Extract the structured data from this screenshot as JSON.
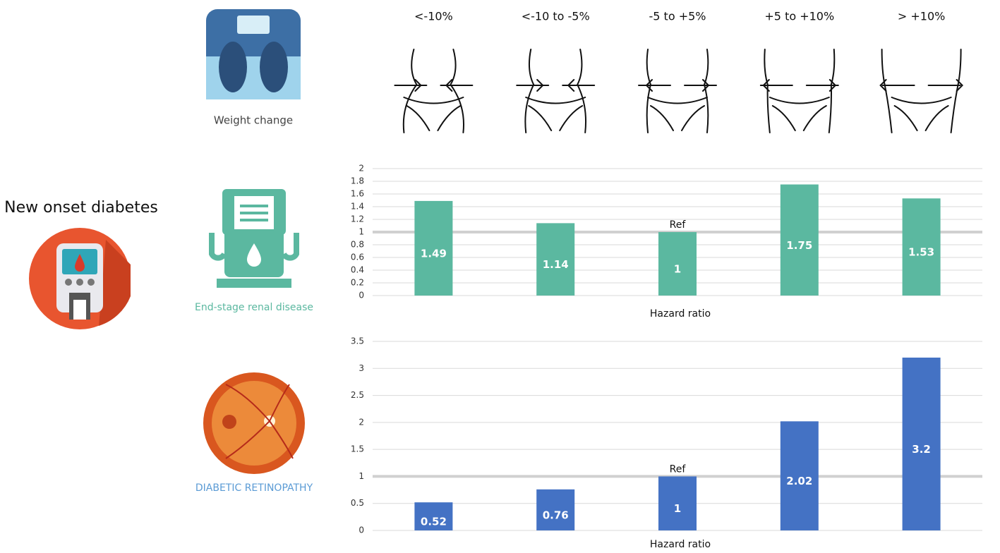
{
  "title": "New onset diabetes",
  "weight_change": {
    "label": "Weight change",
    "categories": [
      "<-10%",
      "<-10 to -5%",
      "-5 to +5%",
      "+5 to +10%",
      "> +10%"
    ]
  },
  "chart_data": [
    {
      "type": "bar",
      "label": "End-stage renal disease",
      "x_label": "Hazard ratio",
      "reference": {
        "text": "Ref",
        "value": 1
      },
      "color": "#5bb8a0",
      "values": [
        1.49,
        1.14,
        1,
        1.75,
        1.53
      ],
      "ylim": [
        0,
        2
      ],
      "yticks": [
        0,
        0.2,
        0.4,
        0.6,
        0.8,
        1,
        1.2,
        1.4,
        1.6,
        1.8,
        2
      ],
      "grid": true
    },
    {
      "type": "bar",
      "label": "DIABETIC RETINOPATHY",
      "x_label": "Hazard ratio",
      "reference": {
        "text": "Ref",
        "value": 1
      },
      "color": "#4472c4",
      "values": [
        0.52,
        0.76,
        1,
        2.02,
        3.2
      ],
      "ylim": [
        0,
        3.5
      ],
      "yticks": [
        0,
        0.5,
        1,
        1.5,
        2,
        2.5,
        3,
        3.5
      ],
      "grid": true
    }
  ]
}
